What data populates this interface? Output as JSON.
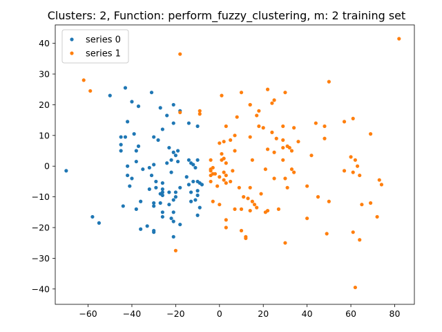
{
  "chart_data": {
    "type": "scatter",
    "title": "Clusters: 2, Function: perform_fuzzy_clustering, m: 2 training set",
    "xlabel": "",
    "ylabel": "",
    "xlim": [
      -75,
      89
    ],
    "ylim": [
      -45,
      46
    ],
    "xticks": [
      -60,
      -40,
      -20,
      0,
      20,
      40,
      60,
      80
    ],
    "yticks": [
      -40,
      -30,
      -20,
      -10,
      0,
      10,
      20,
      30,
      40
    ],
    "grid": false,
    "legend_position": "top-left",
    "series": [
      {
        "name": "series 0",
        "color": "#1f77b4",
        "points": [
          [
            -70,
            -1.5
          ],
          [
            -58,
            -16.5
          ],
          [
            -55,
            -18.5
          ],
          [
            -50,
            23
          ],
          [
            -43,
            25.5
          ],
          [
            -42,
            14.5
          ],
          [
            -40,
            21
          ],
          [
            -37,
            19.5
          ],
          [
            -45,
            9.5
          ],
          [
            -43,
            9.5
          ],
          [
            -39,
            10.5
          ],
          [
            -45,
            7
          ],
          [
            -45,
            5
          ],
          [
            -37,
            6.5
          ],
          [
            -38,
            5
          ],
          [
            -42,
            0
          ],
          [
            -38,
            1.5
          ],
          [
            -40,
            -4
          ],
          [
            -42,
            -3
          ],
          [
            -41,
            -6.5
          ],
          [
            -36,
            -11.5
          ],
          [
            -44,
            -13
          ],
          [
            -38,
            -14
          ],
          [
            -36,
            -20.5
          ],
          [
            -33,
            -19.5
          ],
          [
            -31,
            24
          ],
          [
            -27,
            19
          ],
          [
            -30,
            9.5
          ],
          [
            -28,
            8.5
          ],
          [
            -26,
            12
          ],
          [
            -24,
            16.5
          ],
          [
            -21,
            20
          ],
          [
            -21,
            14
          ],
          [
            -18,
            18
          ],
          [
            -14,
            14
          ],
          [
            -10,
            13
          ],
          [
            -23,
            6
          ],
          [
            -21,
            4.5
          ],
          [
            -19,
            5
          ],
          [
            -20,
            3.5
          ],
          [
            -19,
            1.5
          ],
          [
            -22,
            2
          ],
          [
            -24,
            1
          ],
          [
            -30,
            0.5
          ],
          [
            -32,
            -0.5
          ],
          [
            -35,
            -1
          ],
          [
            -31,
            -3
          ],
          [
            -29,
            -5
          ],
          [
            -26,
            -5.5
          ],
          [
            -26,
            -7.5
          ],
          [
            -29,
            -7
          ],
          [
            -32,
            -7.5
          ],
          [
            -27,
            -9
          ],
          [
            -26,
            -9.5
          ],
          [
            -26,
            -8.5
          ],
          [
            -23,
            -8.5
          ],
          [
            -20,
            -8.5
          ],
          [
            -20,
            -10
          ],
          [
            -21,
            -11
          ],
          [
            -27,
            -12
          ],
          [
            -30,
            -12
          ],
          [
            -30,
            -13
          ],
          [
            -23,
            -12.5
          ],
          [
            -21,
            -15
          ],
          [
            -26,
            -15
          ],
          [
            -26,
            -16.5
          ],
          [
            -22,
            -17
          ],
          [
            -21,
            -18
          ],
          [
            -18,
            -19
          ],
          [
            -30,
            -21
          ],
          [
            -30,
            -21.5
          ],
          [
            -21,
            -23
          ],
          [
            -14,
            2
          ],
          [
            -13,
            1
          ],
          [
            -12,
            0.5
          ],
          [
            -10,
            2
          ],
          [
            -15,
            -3.5
          ],
          [
            -12,
            -5
          ],
          [
            -14,
            -6
          ],
          [
            -10,
            -5
          ],
          [
            -9,
            -5.5
          ],
          [
            -8,
            -6
          ],
          [
            -10,
            -8
          ],
          [
            -13,
            -8.5
          ],
          [
            -10,
            -9.5
          ],
          [
            -13,
            -11.5
          ],
          [
            -11,
            -11
          ],
          [
            -9,
            -13.5
          ],
          [
            -10,
            -16
          ],
          [
            -11,
            -0.5
          ],
          [
            -22,
            -2
          ],
          [
            -18,
            -7
          ]
        ]
      },
      {
        "name": "series 1",
        "color": "#ff7f0e",
        "points": [
          [
            -62,
            28
          ],
          [
            -59,
            24.5
          ],
          [
            -18,
            36.5
          ],
          [
            -18,
            17.5
          ],
          [
            -9,
            18
          ],
          [
            -9,
            17
          ],
          [
            -20,
            -27.5
          ],
          [
            82,
            41.5
          ],
          [
            50,
            27.5
          ],
          [
            22,
            25
          ],
          [
            30,
            24
          ],
          [
            10,
            24
          ],
          [
            1,
            23
          ],
          [
            14,
            20
          ],
          [
            14,
            20
          ],
          [
            25,
            21.5
          ],
          [
            24,
            20.5
          ],
          [
            18,
            18
          ],
          [
            17,
            16.5
          ],
          [
            8,
            16
          ],
          [
            18,
            13
          ],
          [
            20,
            12.5
          ],
          [
            29,
            13
          ],
          [
            34,
            12.5
          ],
          [
            44,
            14
          ],
          [
            48,
            13
          ],
          [
            57,
            14.5
          ],
          [
            61,
            15.5
          ],
          [
            3,
            13
          ],
          [
            7,
            10
          ],
          [
            2,
            8
          ],
          [
            5,
            8.5
          ],
          [
            0,
            7.5
          ],
          [
            14,
            9.5
          ],
          [
            24,
            11
          ],
          [
            26,
            9
          ],
          [
            29,
            8.5
          ],
          [
            29,
            6
          ],
          [
            32,
            6
          ],
          [
            31,
            6.5
          ],
          [
            22,
            5.5
          ],
          [
            25,
            4.5
          ],
          [
            33,
            5
          ],
          [
            36,
            8
          ],
          [
            48,
            9
          ],
          [
            69,
            10.5
          ],
          [
            42,
            3.5
          ],
          [
            7,
            5
          ],
          [
            1,
            4
          ],
          [
            2,
            2.5
          ],
          [
            1,
            2
          ],
          [
            15,
            2
          ],
          [
            29,
            2
          ],
          [
            33,
            -1
          ],
          [
            34,
            -2
          ],
          [
            21,
            -1
          ],
          [
            -4,
            2
          ],
          [
            -3,
            -0.5
          ],
          [
            -4,
            -1
          ],
          [
            -4,
            -1.5
          ],
          [
            -3,
            -2.5
          ],
          [
            -4,
            -3
          ],
          [
            -2,
            -2.5
          ],
          [
            2,
            -2
          ],
          [
            6,
            -1.5
          ],
          [
            3,
            1
          ],
          [
            9,
            -7
          ],
          [
            14,
            -7
          ],
          [
            13,
            -10.5
          ],
          [
            15,
            -11.5
          ],
          [
            16,
            -12.5
          ],
          [
            11,
            -10
          ],
          [
            19,
            -9
          ],
          [
            17,
            -13.5
          ],
          [
            27,
            -14
          ],
          [
            30,
            -4
          ],
          [
            31,
            -7
          ],
          [
            25,
            -4
          ],
          [
            40,
            -6.5
          ],
          [
            45,
            -10
          ],
          [
            50,
            -11.5
          ],
          [
            62,
            2
          ],
          [
            60,
            3
          ],
          [
            63,
            0
          ],
          [
            57,
            -1.5
          ],
          [
            61,
            -2
          ],
          [
            64,
            -3
          ],
          [
            73,
            -4.5
          ],
          [
            74,
            -6
          ],
          [
            65,
            -12.5
          ],
          [
            69,
            -12
          ],
          [
            72,
            -16.5
          ],
          [
            61,
            -21.5
          ],
          [
            64,
            -24
          ],
          [
            49,
            -22
          ],
          [
            40,
            -17
          ],
          [
            22,
            -14.5
          ],
          [
            21,
            -15
          ],
          [
            14,
            -14.5
          ],
          [
            10,
            -14
          ],
          [
            10,
            -21
          ],
          [
            12,
            -23.5
          ],
          [
            30,
            -25
          ],
          [
            3,
            -17.5
          ],
          [
            3,
            -20
          ],
          [
            -3,
            -11.5
          ],
          [
            0,
            -12.5
          ],
          [
            -1,
            -6.5
          ],
          [
            -4,
            -5
          ],
          [
            3,
            -5.5
          ],
          [
            5,
            -5
          ],
          [
            0,
            -3.5
          ],
          [
            3,
            -3
          ],
          [
            2,
            -4.5
          ],
          [
            62,
            -39.5
          ],
          [
            7,
            -14
          ],
          [
            12,
            -23
          ]
        ]
      }
    ]
  }
}
